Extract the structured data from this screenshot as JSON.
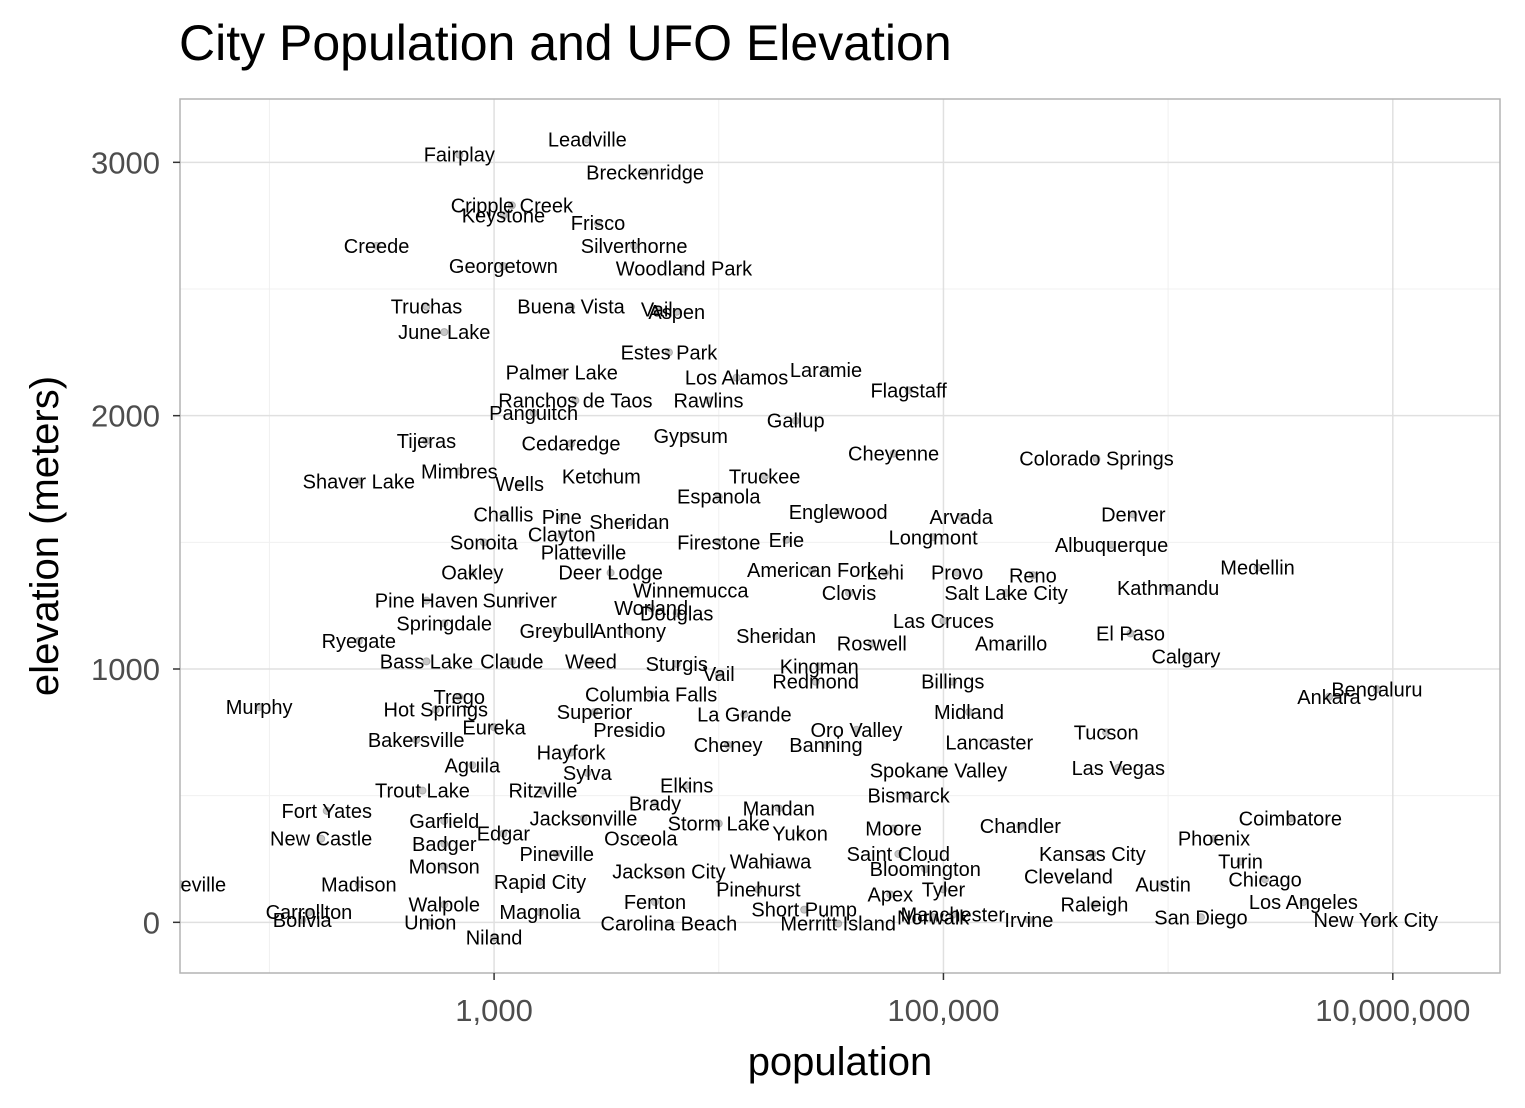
{
  "chart_data": {
    "type": "scatter",
    "title": "City Population and UFO Elevation",
    "xlabel": "population",
    "ylabel": "elevation (meters)",
    "x_scale": "log10",
    "xlim": [
      40,
      30000000
    ],
    "ylim": [
      -200,
      3250
    ],
    "x_ticks": [
      {
        "value": 1000,
        "label": "1,000"
      },
      {
        "value": 100000,
        "label": "100,000"
      },
      {
        "value": 10000000,
        "label": "10,000,000"
      }
    ],
    "y_ticks": [
      {
        "value": 0,
        "label": "0"
      },
      {
        "value": 1000,
        "label": "1000"
      },
      {
        "value": 2000,
        "label": "2000"
      },
      {
        "value": 3000,
        "label": "3000"
      }
    ],
    "grid": true,
    "point_color": "#000000",
    "point_opacity": 0.1,
    "labeled_points": [
      {
        "name": "Leadville",
        "x": 2600,
        "y": 3090
      },
      {
        "name": "Fairplay",
        "x": 700,
        "y": 3030
      },
      {
        "name": "Breckenridge",
        "x": 4700,
        "y": 2960
      },
      {
        "name": "Cripple Creek",
        "x": 1200,
        "y": 2830
      },
      {
        "name": "Keystone",
        "x": 1100,
        "y": 2790
      },
      {
        "name": "Frisco",
        "x": 2900,
        "y": 2760
      },
      {
        "name": "Creede",
        "x": 300,
        "y": 2670
      },
      {
        "name": "Silverthorne",
        "x": 4200,
        "y": 2670
      },
      {
        "name": "Georgetown",
        "x": 1100,
        "y": 2590
      },
      {
        "name": "Woodland Park",
        "x": 7000,
        "y": 2580
      },
      {
        "name": "Vail",
        "x": 5300,
        "y": 2420
      },
      {
        "name": "Truchas",
        "x": 500,
        "y": 2430
      },
      {
        "name": "Buena Vista",
        "x": 2200,
        "y": 2430
      },
      {
        "name": "Aspen",
        "x": 6500,
        "y": 2410
      },
      {
        "name": "June Lake",
        "x": 600,
        "y": 2330
      },
      {
        "name": "Estes Park",
        "x": 6000,
        "y": 2250
      },
      {
        "name": "Palmer Lake",
        "x": 2000,
        "y": 2170
      },
      {
        "name": "Los Alamos",
        "x": 12000,
        "y": 2150
      },
      {
        "name": "Laramie",
        "x": 30000,
        "y": 2180
      },
      {
        "name": "Flagstaff",
        "x": 70000,
        "y": 2100
      },
      {
        "name": "Ranchos de Taos",
        "x": 2300,
        "y": 2060
      },
      {
        "name": "Rawlins",
        "x": 9000,
        "y": 2060
      },
      {
        "name": "Panguitch",
        "x": 1500,
        "y": 2010
      },
      {
        "name": "Gallup",
        "x": 22000,
        "y": 1980
      },
      {
        "name": "Tijeras",
        "x": 500,
        "y": 1900
      },
      {
        "name": "Gypsum",
        "x": 7500,
        "y": 1920
      },
      {
        "name": "Cedaredge",
        "x": 2200,
        "y": 1890
      },
      {
        "name": "Cheyenne",
        "x": 60000,
        "y": 1850
      },
      {
        "name": "Colorado Springs",
        "x": 480000,
        "y": 1830
      },
      {
        "name": "Mimbres",
        "x": 700,
        "y": 1780
      },
      {
        "name": "Ketchum",
        "x": 3000,
        "y": 1760
      },
      {
        "name": "Truckee",
        "x": 16000,
        "y": 1760
      },
      {
        "name": "Shaver Lake",
        "x": 250,
        "y": 1740
      },
      {
        "name": "Wells",
        "x": 1300,
        "y": 1730
      },
      {
        "name": "Espanola",
        "x": 10000,
        "y": 1680
      },
      {
        "name": "Challis",
        "x": 1100,
        "y": 1610
      },
      {
        "name": "Pine",
        "x": 2000,
        "y": 1600
      },
      {
        "name": "Sheridan",
        "x": 4000,
        "y": 1580
      },
      {
        "name": "Englewood",
        "x": 34000,
        "y": 1620
      },
      {
        "name": "Arvada",
        "x": 120000,
        "y": 1600
      },
      {
        "name": "Denver",
        "x": 700000,
        "y": 1610
      },
      {
        "name": "Clayton",
        "x": 2000,
        "y": 1530
      },
      {
        "name": "Erie",
        "x": 20000,
        "y": 1510
      },
      {
        "name": "Longmont",
        "x": 90000,
        "y": 1520
      },
      {
        "name": "Firestone",
        "x": 10000,
        "y": 1500
      },
      {
        "name": "Albuquerque",
        "x": 560000,
        "y": 1490
      },
      {
        "name": "Sonoita",
        "x": 900,
        "y": 1500
      },
      {
        "name": "Platteville",
        "x": 2500,
        "y": 1460
      },
      {
        "name": "Oakley",
        "x": 800,
        "y": 1380
      },
      {
        "name": "Deer Lodge",
        "x": 3300,
        "y": 1380
      },
      {
        "name": "American Fork",
        "x": 26000,
        "y": 1390
      },
      {
        "name": "Lehi",
        "x": 55000,
        "y": 1380
      },
      {
        "name": "Provo",
        "x": 115000,
        "y": 1380
      },
      {
        "name": "Reno",
        "x": 250000,
        "y": 1370
      },
      {
        "name": "Medellin",
        "x": 2500000,
        "y": 1400
      },
      {
        "name": "Kathmandu",
        "x": 1000000,
        "y": 1320
      },
      {
        "name": "Winnemucca",
        "x": 7500,
        "y": 1310
      },
      {
        "name": "Clovis",
        "x": 38000,
        "y": 1300
      },
      {
        "name": "Salt Lake City",
        "x": 190000,
        "y": 1300
      },
      {
        "name": "Pine Haven",
        "x": 500,
        "y": 1270
      },
      {
        "name": "Sunriver",
        "x": 1300,
        "y": 1270
      },
      {
        "name": "Worland",
        "x": 5000,
        "y": 1240
      },
      {
        "name": "Douglas",
        "x": 6500,
        "y": 1220
      },
      {
        "name": "Springdale",
        "x": 600,
        "y": 1180
      },
      {
        "name": "Las Cruces",
        "x": 100000,
        "y": 1190
      },
      {
        "name": "Greybull",
        "x": 1900,
        "y": 1150
      },
      {
        "name": "Anthony",
        "x": 4000,
        "y": 1150
      },
      {
        "name": "Sheridan",
        "x": 18000,
        "y": 1130
      },
      {
        "name": "Amarillo",
        "x": 200000,
        "y": 1100
      },
      {
        "name": "El Paso",
        "x": 680000,
        "y": 1140
      },
      {
        "name": "Ryegate",
        "x": 250,
        "y": 1110
      },
      {
        "name": "Roswell",
        "x": 48000,
        "y": 1100
      },
      {
        "name": "Calgary",
        "x": 1200000,
        "y": 1050
      },
      {
        "name": "Bass Lake",
        "x": 500,
        "y": 1030
      },
      {
        "name": "Claude",
        "x": 1200,
        "y": 1030
      },
      {
        "name": "Weed",
        "x": 2700,
        "y": 1030
      },
      {
        "name": "Sturgis",
        "x": 6500,
        "y": 1020
      },
      {
        "name": "Kingman",
        "x": 28000,
        "y": 1010
      },
      {
        "name": "Vail",
        "x": 10000,
        "y": 980
      },
      {
        "name": "Trego",
        "x": 700,
        "y": 890
      },
      {
        "name": "Columbia Falls",
        "x": 5000,
        "y": 900
      },
      {
        "name": "Billings",
        "x": 110000,
        "y": 950
      },
      {
        "name": "Redmond",
        "x": 27000,
        "y": 950
      },
      {
        "name": "Bengaluru",
        "x": 8500000,
        "y": 920
      },
      {
        "name": "Murphy",
        "x": 90,
        "y": 850
      },
      {
        "name": "Hot Springs",
        "x": 550,
        "y": 840
      },
      {
        "name": "Superior",
        "x": 2800,
        "y": 830
      },
      {
        "name": "La Grande",
        "x": 13000,
        "y": 820
      },
      {
        "name": "Midland",
        "x": 130000,
        "y": 830
      },
      {
        "name": "Ankara",
        "x": 5200000,
        "y": 890
      },
      {
        "name": "Eureka",
        "x": 1000,
        "y": 770
      },
      {
        "name": "Presidio",
        "x": 4000,
        "y": 760
      },
      {
        "name": "Oro Valley",
        "x": 41000,
        "y": 760
      },
      {
        "name": "Tucson",
        "x": 530000,
        "y": 750
      },
      {
        "name": "Bakersville",
        "x": 450,
        "y": 720
      },
      {
        "name": "Hayfork",
        "x": 2200,
        "y": 670
      },
      {
        "name": "Cheney",
        "x": 11000,
        "y": 700
      },
      {
        "name": "Banning",
        "x": 30000,
        "y": 700
      },
      {
        "name": "Lancaster",
        "x": 160000,
        "y": 710
      },
      {
        "name": "Aguila",
        "x": 800,
        "y": 620
      },
      {
        "name": "Sylva",
        "x": 2600,
        "y": 590
      },
      {
        "name": "Spokane Valley",
        "x": 95000,
        "y": 600
      },
      {
        "name": "Elkins",
        "x": 7200,
        "y": 540
      },
      {
        "name": "Las Vegas",
        "x": 600000,
        "y": 610
      },
      {
        "name": "Trout Lake",
        "x": 480,
        "y": 520
      },
      {
        "name": "Ritzville",
        "x": 1650,
        "y": 520
      },
      {
        "name": "Brady",
        "x": 5200,
        "y": 470
      },
      {
        "name": "Mandan",
        "x": 18500,
        "y": 450
      },
      {
        "name": "Bismarck",
        "x": 70000,
        "y": 500
      },
      {
        "name": "Fort Yates",
        "x": 180,
        "y": 440
      },
      {
        "name": "Jacksonville",
        "x": 2500,
        "y": 410
      },
      {
        "name": "Garfield",
        "x": 600,
        "y": 400
      },
      {
        "name": "Storm Lake",
        "x": 10000,
        "y": 390
      },
      {
        "name": "Edgar",
        "x": 1100,
        "y": 350
      },
      {
        "name": "Yukon",
        "x": 23000,
        "y": 350
      },
      {
        "name": "Moore",
        "x": 60000,
        "y": 370
      },
      {
        "name": "Chandler",
        "x": 220000,
        "y": 380
      },
      {
        "name": "Coimbatore",
        "x": 3500000,
        "y": 410
      },
      {
        "name": "New Castle",
        "x": 170,
        "y": 330
      },
      {
        "name": "Badger",
        "x": 600,
        "y": 310
      },
      {
        "name": "Osceola",
        "x": 4500,
        "y": 330
      },
      {
        "name": "Phoenix",
        "x": 1600000,
        "y": 330
      },
      {
        "name": "Pineville",
        "x": 1900,
        "y": 270
      },
      {
        "name": "Wahiawa",
        "x": 17000,
        "y": 240
      },
      {
        "name": "Saint Cloud",
        "x": 63000,
        "y": 270
      },
      {
        "name": "Kansas City",
        "x": 460000,
        "y": 270
      },
      {
        "name": "Monson",
        "x": 600,
        "y": 220
      },
      {
        "name": "Jackson City",
        "x": 6000,
        "y": 200
      },
      {
        "name": "Bloomington",
        "x": 83000,
        "y": 210
      },
      {
        "name": "Turin",
        "x": 2100000,
        "y": 240
      },
      {
        "name": "Booneville",
        "x": 40,
        "y": 150
      },
      {
        "name": "Rapid City",
        "x": 1600,
        "y": 160
      },
      {
        "name": "Cleveland",
        "x": 360000,
        "y": 180
      },
      {
        "name": "Madison",
        "x": 250,
        "y": 150
      },
      {
        "name": "Pinehurst",
        "x": 15000,
        "y": 130
      },
      {
        "name": "Apex",
        "x": 58000,
        "y": 110
      },
      {
        "name": "Tyler",
        "x": 100000,
        "y": 130
      },
      {
        "name": "Chicago",
        "x": 2700000,
        "y": 170
      },
      {
        "name": "Austin",
        "x": 950000,
        "y": 150
      },
      {
        "name": "Walpole",
        "x": 600,
        "y": 70
      },
      {
        "name": "Fenton",
        "x": 5200,
        "y": 80
      },
      {
        "name": "Raleigh",
        "x": 470000,
        "y": 70
      },
      {
        "name": "Carrollton",
        "x": 150,
        "y": 40
      },
      {
        "name": "Magnolia",
        "x": 1600,
        "y": 40
      },
      {
        "name": "Short Pump",
        "x": 24000,
        "y": 50
      },
      {
        "name": "Manchester",
        "x": 110000,
        "y": 30
      },
      {
        "name": "Los Angeles",
        "x": 4000000,
        "y": 80
      },
      {
        "name": "Union",
        "x": 520,
        "y": 0
      },
      {
        "name": "Irvine",
        "x": 240000,
        "y": 10
      },
      {
        "name": "San Diego",
        "x": 1400000,
        "y": 20
      },
      {
        "name": "Norwalk",
        "x": 90000,
        "y": 20
      },
      {
        "name": "Bolivia",
        "x": 140,
        "y": 10
      },
      {
        "name": "Carolina Beach",
        "x": 6000,
        "y": -5
      },
      {
        "name": "Merritt Island",
        "x": 34000,
        "y": -5
      },
      {
        "name": "New York City",
        "x": 8400000,
        "y": 10
      },
      {
        "name": "Niland",
        "x": 1000,
        "y": -60
      }
    ]
  }
}
